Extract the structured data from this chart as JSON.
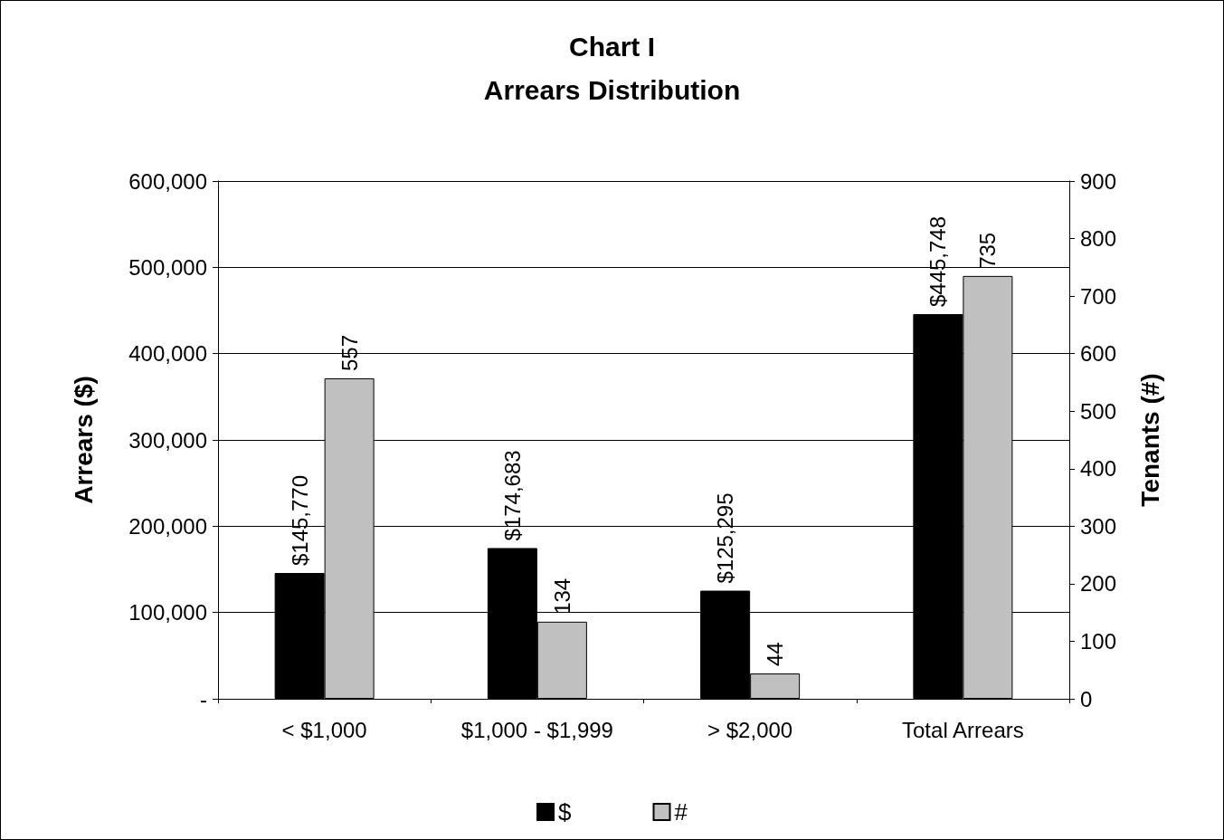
{
  "chart_data": {
    "type": "bar",
    "title": "Chart I",
    "subtitle": "Arrears Distribution",
    "ylabel": "Arrears ($)",
    "y2label": "Tenants (#)",
    "categories": [
      "< $1,000",
      "$1,000 - $1,999",
      "> $2,000",
      "Total Arrears"
    ],
    "series": [
      {
        "name": "$",
        "color": "#000000",
        "values": [
          145770,
          174683,
          125295,
          445748
        ],
        "value_labels": [
          "$145,770",
          "$174,683",
          "$125,295",
          "$445,748"
        ]
      },
      {
        "name": "#",
        "color": "#c0c0c0",
        "axis": "y2",
        "values": [
          557,
          134,
          44,
          735
        ],
        "value_labels": [
          "557",
          "134",
          "44",
          "735"
        ]
      }
    ],
    "ylim": [
      0,
      600000
    ],
    "yticks": [
      {
        "value": 0,
        "label": "-"
      },
      {
        "value": 100000,
        "label": "100,000"
      },
      {
        "value": 200000,
        "label": "200,000"
      },
      {
        "value": 300000,
        "label": "300,000"
      },
      {
        "value": 400000,
        "label": "400,000"
      },
      {
        "value": 500000,
        "label": "500,000"
      },
      {
        "value": 600000,
        "label": "600,000"
      }
    ],
    "y2lim": [
      0,
      900
    ],
    "y2ticks": [
      0,
      100,
      200,
      300,
      400,
      500,
      600,
      700,
      800,
      900
    ],
    "grid": "y",
    "legend": "bottom"
  }
}
